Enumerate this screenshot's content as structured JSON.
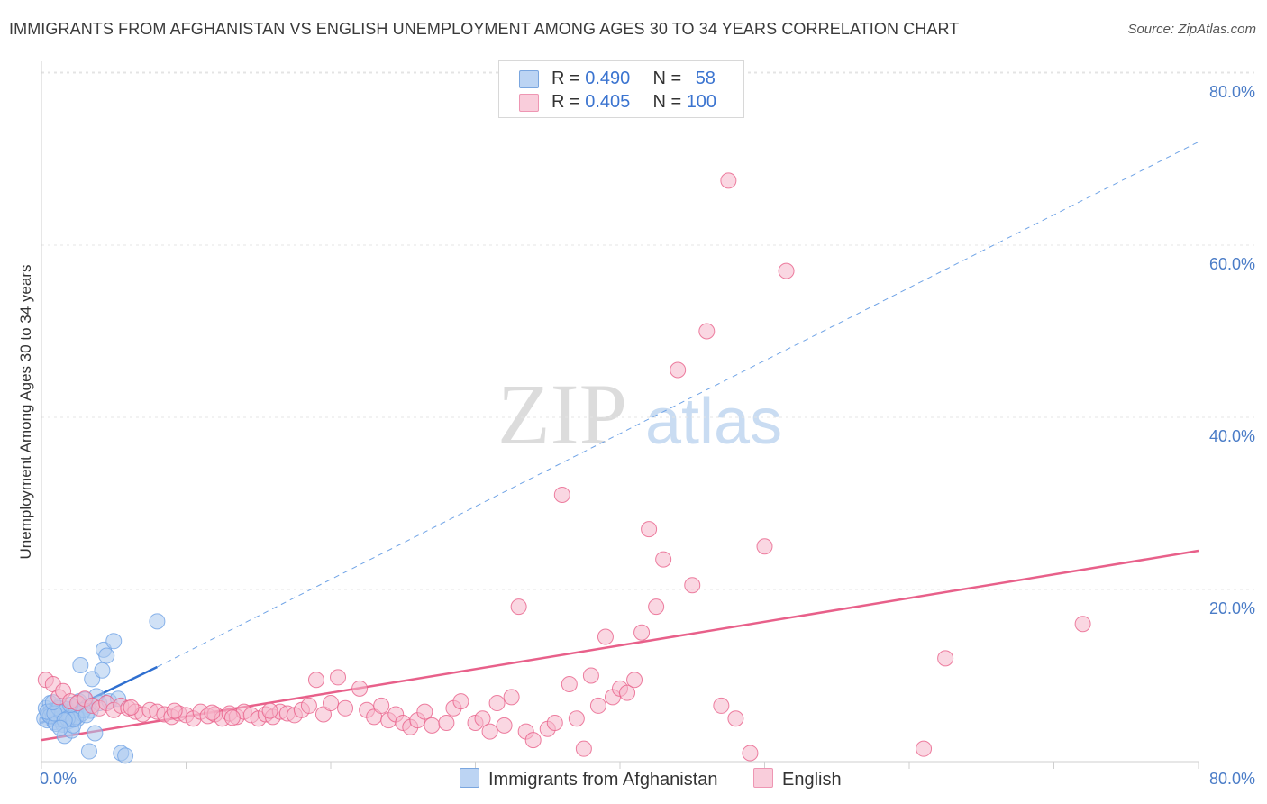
{
  "title": "IMMIGRANTS FROM AFGHANISTAN VS ENGLISH UNEMPLOYMENT AMONG AGES 30 TO 34 YEARS CORRELATION CHART",
  "source": "Source: ZipAtlas.com",
  "watermark": {
    "zip": "ZIP",
    "atlas": "atlas"
  },
  "legend": {
    "rows": [
      {
        "r_label": "R = ",
        "r_value": "0.490",
        "n_label": "N = ",
        "n_value": "58",
        "color": "#a9c8ef"
      },
      {
        "r_label": "R = ",
        "r_value": "0.405",
        "n_label": "N = ",
        "n_value": "100",
        "color": "#f6b7cb"
      }
    ]
  },
  "bottom_legend": [
    {
      "label": "Immigrants from Afghanistan",
      "color": "#a9c8ef"
    },
    {
      "label": "English",
      "color": "#f6b7cb"
    }
  ],
  "chart_data": {
    "type": "scatter",
    "title": "IMMIGRANTS FROM AFGHANISTAN VS ENGLISH UNEMPLOYMENT AMONG AGES 30 TO 34 YEARS CORRELATION CHART",
    "xlabel": "",
    "ylabel": "Unemployment Among Ages 30 to 34 years",
    "xlim": [
      0,
      80
    ],
    "ylim": [
      0,
      82
    ],
    "x_tick_labels": [
      "0.0%",
      "80.0%"
    ],
    "y_ticks": [
      20,
      40,
      60,
      80
    ],
    "y_tick_labels": [
      "20.0%",
      "40.0%",
      "60.0%",
      "80.0%"
    ],
    "grid": true,
    "series": [
      {
        "name": "Immigrants from Afghanistan",
        "color": "#6fa3e6",
        "fill": "#a9c8ef",
        "trend": {
          "x0": 0,
          "y0": 4.5,
          "x1": 8,
          "y1": 11,
          "dash_to": 80,
          "dash_y": 72
        },
        "points": [
          [
            0.2,
            5.0
          ],
          [
            0.3,
            6.2
          ],
          [
            0.4,
            4.8
          ],
          [
            0.5,
            5.5
          ],
          [
            0.6,
            6.8
          ],
          [
            0.7,
            5.9
          ],
          [
            0.8,
            5.2
          ],
          [
            0.9,
            4.6
          ],
          [
            1.0,
            6.0
          ],
          [
            1.1,
            5.4
          ],
          [
            1.2,
            4.9
          ],
          [
            1.3,
            6.5
          ],
          [
            1.4,
            5.1
          ],
          [
            1.5,
            4.3
          ],
          [
            1.6,
            3.0
          ],
          [
            1.7,
            5.8
          ],
          [
            1.8,
            6.1
          ],
          [
            1.9,
            4.7
          ],
          [
            2.0,
            5.3
          ],
          [
            2.1,
            3.6
          ],
          [
            2.2,
            4.2
          ],
          [
            2.3,
            6.3
          ],
          [
            2.5,
            5.0
          ],
          [
            2.6,
            7.0
          ],
          [
            2.7,
            11.2
          ],
          [
            2.8,
            5.6
          ],
          [
            3.0,
            7.2
          ],
          [
            3.2,
            6.4
          ],
          [
            3.4,
            5.9
          ],
          [
            3.5,
            9.6
          ],
          [
            3.7,
            3.3
          ],
          [
            3.8,
            7.6
          ],
          [
            4.0,
            6.8
          ],
          [
            4.2,
            10.6
          ],
          [
            4.3,
            13.0
          ],
          [
            4.5,
            12.3
          ],
          [
            4.7,
            7.0
          ],
          [
            5.0,
            14.0
          ],
          [
            5.3,
            7.3
          ],
          [
            5.5,
            1.0
          ],
          [
            5.8,
            0.7
          ],
          [
            8.0,
            16.3
          ],
          [
            3.3,
            1.2
          ],
          [
            0.6,
            5.3
          ],
          [
            1.0,
            4.4
          ],
          [
            1.4,
            5.7
          ],
          [
            2.4,
            5.2
          ],
          [
            2.9,
            6.0
          ],
          [
            0.4,
            5.8
          ],
          [
            1.2,
            6.2
          ],
          [
            1.8,
            5.0
          ],
          [
            2.2,
            4.9
          ],
          [
            0.9,
            5.6
          ],
          [
            1.6,
            4.8
          ],
          [
            2.0,
            6.6
          ],
          [
            0.8,
            6.9
          ],
          [
            1.3,
            3.9
          ],
          [
            3.1,
            5.4
          ]
        ]
      },
      {
        "name": "English",
        "color": "#e8608a",
        "fill": "#f6b7cb",
        "trend": {
          "x0": 0,
          "y0": 2.5,
          "x1": 80,
          "y1": 24.5
        },
        "points": [
          [
            0.3,
            9.5
          ],
          [
            0.8,
            9.0
          ],
          [
            1.2,
            7.5
          ],
          [
            1.5,
            8.2
          ],
          [
            2.0,
            7.0
          ],
          [
            2.5,
            6.8
          ],
          [
            3.0,
            7.3
          ],
          [
            3.5,
            6.5
          ],
          [
            4.0,
            6.2
          ],
          [
            4.5,
            6.8
          ],
          [
            5.0,
            6.0
          ],
          [
            5.5,
            6.5
          ],
          [
            6.0,
            6.2
          ],
          [
            6.5,
            5.8
          ],
          [
            7.0,
            5.5
          ],
          [
            7.5,
            6.0
          ],
          [
            8.0,
            5.8
          ],
          [
            8.5,
            5.5
          ],
          [
            9.0,
            5.2
          ],
          [
            9.5,
            5.6
          ],
          [
            10.0,
            5.4
          ],
          [
            10.5,
            5.0
          ],
          [
            11.0,
            5.8
          ],
          [
            11.5,
            5.3
          ],
          [
            12.0,
            5.5
          ],
          [
            12.5,
            5.0
          ],
          [
            13.0,
            5.6
          ],
          [
            13.5,
            5.2
          ],
          [
            14.0,
            5.8
          ],
          [
            14.5,
            5.4
          ],
          [
            15.0,
            5.0
          ],
          [
            15.5,
            5.5
          ],
          [
            16.0,
            5.2
          ],
          [
            16.5,
            5.8
          ],
          [
            17.0,
            5.6
          ],
          [
            17.5,
            5.4
          ],
          [
            18.0,
            6.0
          ],
          [
            18.5,
            6.5
          ],
          [
            19.0,
            9.5
          ],
          [
            19.5,
            5.5
          ],
          [
            20.0,
            6.8
          ],
          [
            20.5,
            9.8
          ],
          [
            21.0,
            6.2
          ],
          [
            22.0,
            8.5
          ],
          [
            22.5,
            6.0
          ],
          [
            23.0,
            5.2
          ],
          [
            23.5,
            6.5
          ],
          [
            24.0,
            4.8
          ],
          [
            24.5,
            5.5
          ],
          [
            25.0,
            4.5
          ],
          [
            25.5,
            4.0
          ],
          [
            26.0,
            4.8
          ],
          [
            26.5,
            5.8
          ],
          [
            27.0,
            4.2
          ],
          [
            28.0,
            4.5
          ],
          [
            28.5,
            6.2
          ],
          [
            29.0,
            7.0
          ],
          [
            30.0,
            4.5
          ],
          [
            30.5,
            5.0
          ],
          [
            31.0,
            3.5
          ],
          [
            31.5,
            6.8
          ],
          [
            32.0,
            4.2
          ],
          [
            32.5,
            7.5
          ],
          [
            33.0,
            18.0
          ],
          [
            33.5,
            3.5
          ],
          [
            34.0,
            2.5
          ],
          [
            35.0,
            3.8
          ],
          [
            35.5,
            4.5
          ],
          [
            36.0,
            31.0
          ],
          [
            36.5,
            9.0
          ],
          [
            37.0,
            5.0
          ],
          [
            37.5,
            1.5
          ],
          [
            38.0,
            10.0
          ],
          [
            38.5,
            6.5
          ],
          [
            39.0,
            14.5
          ],
          [
            39.5,
            7.5
          ],
          [
            40.0,
            8.5
          ],
          [
            40.5,
            8.0
          ],
          [
            41.0,
            9.5
          ],
          [
            41.5,
            15.0
          ],
          [
            42.0,
            27.0
          ],
          [
            42.5,
            18.0
          ],
          [
            43.0,
            23.5
          ],
          [
            44.0,
            45.5
          ],
          [
            45.0,
            20.5
          ],
          [
            46.0,
            50.0
          ],
          [
            47.0,
            6.5
          ],
          [
            47.5,
            67.5
          ],
          [
            48.0,
            5.0
          ],
          [
            49.0,
            1.0
          ],
          [
            50.0,
            25.0
          ],
          [
            51.5,
            57.0
          ],
          [
            61.0,
            1.5
          ],
          [
            62.5,
            12.0
          ],
          [
            72.0,
            16.0
          ],
          [
            6.2,
            6.3
          ],
          [
            9.2,
            5.9
          ],
          [
            11.8,
            5.7
          ],
          [
            13.2,
            5.1
          ],
          [
            15.8,
            5.9
          ]
        ]
      }
    ]
  }
}
